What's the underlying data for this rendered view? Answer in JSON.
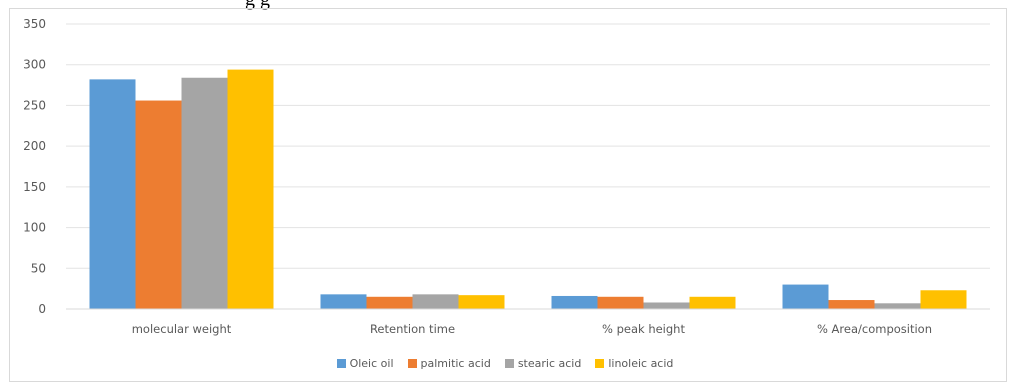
{
  "top_fragment": "g    g",
  "chart_data": {
    "type": "bar",
    "title": "",
    "xlabel": "",
    "ylabel": "",
    "ylim": [
      0,
      350
    ],
    "yticks": [
      0,
      50,
      100,
      150,
      200,
      250,
      300,
      350
    ],
    "grid": true,
    "legend_position": "bottom",
    "categories": [
      "molecular weight",
      "Retention time",
      "% peak height",
      "% Area/composition"
    ],
    "series": [
      {
        "name": "Oleic oil",
        "color": "#5b9bd5",
        "values": [
          282,
          18,
          16,
          30
        ]
      },
      {
        "name": "palmitic acid",
        "color": "#ed7d31",
        "values": [
          256,
          15,
          15,
          11
        ]
      },
      {
        "name": "stearic acid",
        "color": "#a5a5a5",
        "values": [
          284,
          18,
          8,
          7
        ]
      },
      {
        "name": "linoleic acid",
        "color": "#ffc000",
        "values": [
          294,
          17,
          15,
          23
        ]
      }
    ]
  }
}
